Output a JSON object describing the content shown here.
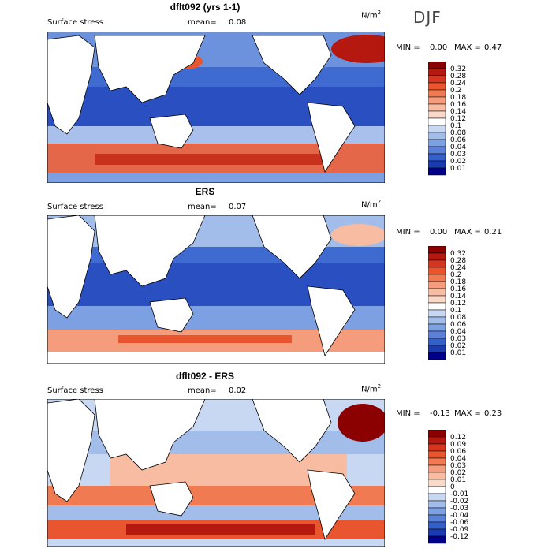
{
  "season": "DJF",
  "units_prefix": "N/m",
  "units_exp": "2",
  "min_label": "MIN =",
  "max_label": "MAX =",
  "panels": [
    {
      "title": "dflt092 (yrs 1-1)",
      "variable": "Surface stress",
      "mean_label": "mean=",
      "mean_value": "0.08",
      "min": "0.00",
      "max": "0.47",
      "colorbar_ticks": [
        "0.32",
        "0.28",
        "0.24",
        "0.2",
        "0.18",
        "0.16",
        "0.14",
        "0.12",
        "0.1",
        "0.08",
        "0.06",
        "0.04",
        "0.03",
        "0.02",
        "0.01"
      ],
      "colorbar_colors": [
        "#8b0000",
        "#b5180f",
        "#d6351f",
        "#e8552f",
        "#f07a52",
        "#f59c7c",
        "#f8bca3",
        "#fbd9c8",
        "#ffffff",
        "#c8d8f2",
        "#a2bdea",
        "#7da0e2",
        "#5a80d8",
        "#3560c9",
        "#1a3cb0",
        "#00008b"
      ]
    },
    {
      "title": "ERS",
      "variable": "Surface stress",
      "mean_label": "mean=",
      "mean_value": "0.07",
      "min": "0.00",
      "max": "0.21",
      "colorbar_ticks": [
        "0.32",
        "0.28",
        "0.24",
        "0.2",
        "0.18",
        "0.16",
        "0.14",
        "0.12",
        "0.1",
        "0.08",
        "0.06",
        "0.04",
        "0.03",
        "0.02",
        "0.01"
      ],
      "colorbar_colors": [
        "#8b0000",
        "#b5180f",
        "#d6351f",
        "#e8552f",
        "#f07a52",
        "#f59c7c",
        "#f8bca3",
        "#fbd9c8",
        "#ffffff",
        "#c8d8f2",
        "#a2bdea",
        "#7da0e2",
        "#5a80d8",
        "#3560c9",
        "#1a3cb0",
        "#00008b"
      ]
    },
    {
      "title": "dflt092 - ERS",
      "variable": "Surface stress",
      "mean_label": "mean=",
      "mean_value": "0.02",
      "min": "-0.13",
      "max": "0.23",
      "colorbar_ticks": [
        "0.12",
        "0.09",
        "0.06",
        "0.04",
        "0.03",
        "0.02",
        "0.01",
        "0",
        "-0.01",
        "-0.02",
        "-0.03",
        "-0.04",
        "-0.06",
        "-0.09",
        "-0.12"
      ],
      "colorbar_colors": [
        "#8b0000",
        "#b5180f",
        "#d6351f",
        "#e8552f",
        "#f07a52",
        "#f59c7c",
        "#f8bca3",
        "#fbd9c8",
        "#ffffff",
        "#c8d8f2",
        "#a2bdea",
        "#7da0e2",
        "#5a80d8",
        "#3560c9",
        "#1a3cb0",
        "#00008b"
      ]
    }
  ]
}
